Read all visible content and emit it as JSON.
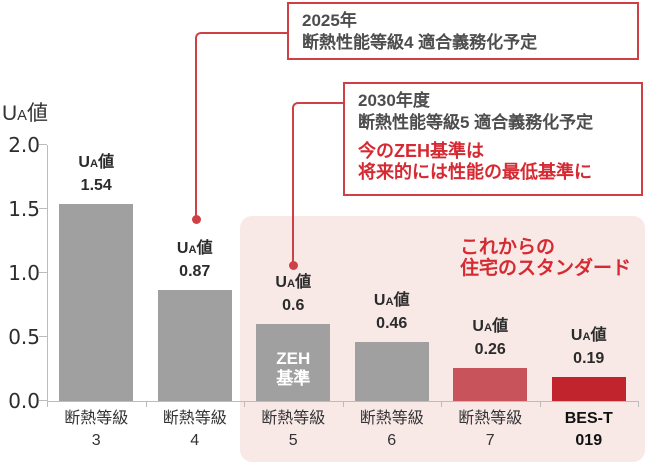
{
  "colors": {
    "accent_red": "#cf4046",
    "red_text": "#d52a32",
    "bar_gray": "#a0a0a0",
    "bar_red": "#c9535a",
    "bar_dark_red": "#c1242c",
    "panel_pink": "#f8e9e7",
    "text_gray": "#4d4d4d",
    "axis_gray": "#bcbcbc"
  },
  "chart_data": {
    "type": "bar",
    "title": "UA値",
    "ua_parts": [
      "U",
      "A",
      "値"
    ],
    "ylabel": "UA値",
    "ylim": [
      0,
      2.0
    ],
    "yticks": [
      "2.0",
      "1.5",
      "1.0",
      "0.5",
      "0.0"
    ],
    "grid": false,
    "legend_position": "none",
    "categories": [
      "断熱等級 3",
      "断熱等級 4",
      "断熱等級 5",
      "断熱等級 6",
      "断熱等級 7",
      "BES-T 019"
    ],
    "values": [
      1.54,
      0.87,
      0.6,
      0.46,
      0.26,
      0.19
    ],
    "bars": [
      {
        "category_lines": [
          "断熱等級",
          "3"
        ],
        "value": 1.54,
        "value_label": "1.54",
        "color": "#a0a0a0",
        "category_bold": false
      },
      {
        "category_lines": [
          "断熱等級",
          "4"
        ],
        "value": 0.87,
        "value_label": "0.87",
        "color": "#a0a0a0",
        "category_bold": false
      },
      {
        "category_lines": [
          "断熱等級",
          "5"
        ],
        "value": 0.6,
        "value_label": "0.6",
        "color": "#a0a0a0",
        "category_bold": false,
        "inner_label": [
          "ZEH",
          "基準"
        ]
      },
      {
        "category_lines": [
          "断熱等級",
          "6"
        ],
        "value": 0.46,
        "value_label": "0.46",
        "color": "#a0a0a0",
        "category_bold": false
      },
      {
        "category_lines": [
          "断熱等級",
          "7"
        ],
        "value": 0.26,
        "value_label": "0.26",
        "color": "#c9535a",
        "category_bold": false
      },
      {
        "category_lines": [
          "BES-T",
          "019"
        ],
        "value": 0.19,
        "value_label": "0.19",
        "color": "#c1242c",
        "category_bold": true
      }
    ],
    "highlight_label": [
      "これからの",
      "住宅のスタンダード"
    ]
  },
  "callouts": [
    {
      "lines": [
        "2025年",
        "断熱性能等級4 適合義務化予定"
      ]
    },
    {
      "lines": [
        "2030年度",
        "断熱性能等級5 適合義務化予定"
      ],
      "red_lines": [
        "今のZEH基準は",
        "将来的には性能の最低基準に"
      ]
    }
  ]
}
